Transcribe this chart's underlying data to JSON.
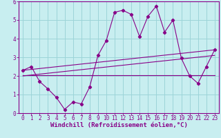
{
  "xlabel": "Windchill (Refroidissement éolien,°C)",
  "bg_color": "#c8eef0",
  "grid_color": "#9cd4d8",
  "line_color": "#880088",
  "spine_color": "#880088",
  "xlim": [
    -0.5,
    23.5
  ],
  "ylim": [
    0,
    6
  ],
  "xticks": [
    0,
    1,
    2,
    3,
    4,
    5,
    6,
    7,
    8,
    9,
    10,
    11,
    12,
    13,
    14,
    15,
    16,
    17,
    18,
    19,
    20,
    21,
    22,
    23
  ],
  "yticks": [
    0,
    1,
    2,
    3,
    4,
    5,
    6
  ],
  "line1_x": [
    0,
    1,
    2,
    3,
    4,
    5,
    6,
    7,
    8,
    9,
    10,
    11,
    12,
    13,
    14,
    15,
    16,
    17,
    18,
    19,
    20,
    21,
    22,
    23
  ],
  "line1_y": [
    2.3,
    2.5,
    1.7,
    1.3,
    0.85,
    0.2,
    0.6,
    0.5,
    1.4,
    3.1,
    3.9,
    5.42,
    5.52,
    5.3,
    4.1,
    5.2,
    5.75,
    4.35,
    5.0,
    2.95,
    2.0,
    1.6,
    2.5,
    3.4
  ],
  "line2_x": [
    0,
    23
  ],
  "line2_y": [
    2.3,
    3.4
  ],
  "line3_x": [
    0,
    23
  ],
  "line3_y": [
    2.05,
    2.05
  ],
  "line4_x": [
    0,
    23
  ],
  "line4_y": [
    2.0,
    3.1
  ],
  "font_size_xlabel": 6.5,
  "font_size_ticks": 5.5,
  "linewidth": 0.8,
  "markersize": 2.2
}
